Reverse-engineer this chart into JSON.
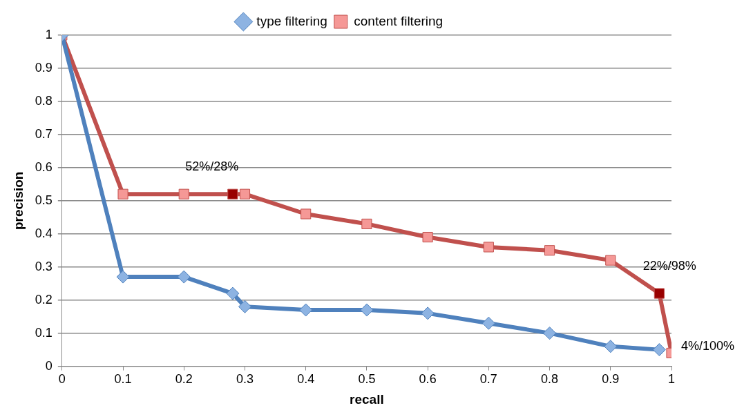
{
  "chart_data": {
    "type": "line",
    "xlabel": "recall",
    "ylabel": "precision",
    "xlim": [
      0,
      1
    ],
    "xticks": [
      0,
      0.1,
      0.2,
      0.3,
      0.4,
      0.5,
      0.6,
      0.7,
      0.8,
      0.9,
      1
    ],
    "ylim": [
      0,
      1
    ],
    "yticks": [
      0,
      0.1,
      0.2,
      0.3,
      0.4,
      0.5,
      0.6,
      0.7,
      0.8,
      0.9,
      1
    ],
    "grid": "y",
    "legend": "top",
    "series": [
      {
        "name": "type filtering",
        "color": "#4f81bd",
        "marker": "diamond",
        "colors": [
          "#8db3e2",
          "#8db3e2",
          "#8db3e2",
          "#8db3e2",
          "#8db3e2",
          "#8db3e2",
          "#8db3e2",
          "#8db3e2",
          "#8db3e2",
          "#8db3e2",
          "#8db3e2",
          "#8db3e2"
        ],
        "x": [
          0,
          0.1,
          0.2,
          0.28,
          0.3,
          0.4,
          0.5,
          0.6,
          0.7,
          0.8,
          0.9,
          0.98
        ],
        "values": [
          1,
          0.27,
          0.27,
          0.22,
          0.18,
          0.17,
          0.17,
          0.16,
          0.13,
          0.1,
          0.06,
          0.05
        ]
      },
      {
        "name": "content filtering",
        "color": "#c0504d",
        "marker": "square",
        "colors": [
          "#f59896",
          "#f59896",
          "#f59896",
          "#990000",
          "#f59896",
          "#f59896",
          "#f59896",
          "#f59896",
          "#f59896",
          "#f59896",
          "#f59896",
          "#990000",
          "#f59896"
        ],
        "x": [
          0,
          0.1,
          0.2,
          0.28,
          0.3,
          0.4,
          0.5,
          0.6,
          0.7,
          0.8,
          0.9,
          0.98,
          1
        ],
        "values": [
          1,
          0.52,
          0.52,
          0.52,
          0.52,
          0.46,
          0.43,
          0.39,
          0.36,
          0.35,
          0.32,
          0.22,
          0.04
        ]
      }
    ],
    "annotations": [
      {
        "text": "52%/28%",
        "x": 0.28,
        "y": 0.52
      },
      {
        "text": "22%/98%",
        "x": 0.98,
        "y": 0.22
      },
      {
        "text": "4%/100%",
        "x": 1,
        "y": 0.04
      }
    ]
  }
}
